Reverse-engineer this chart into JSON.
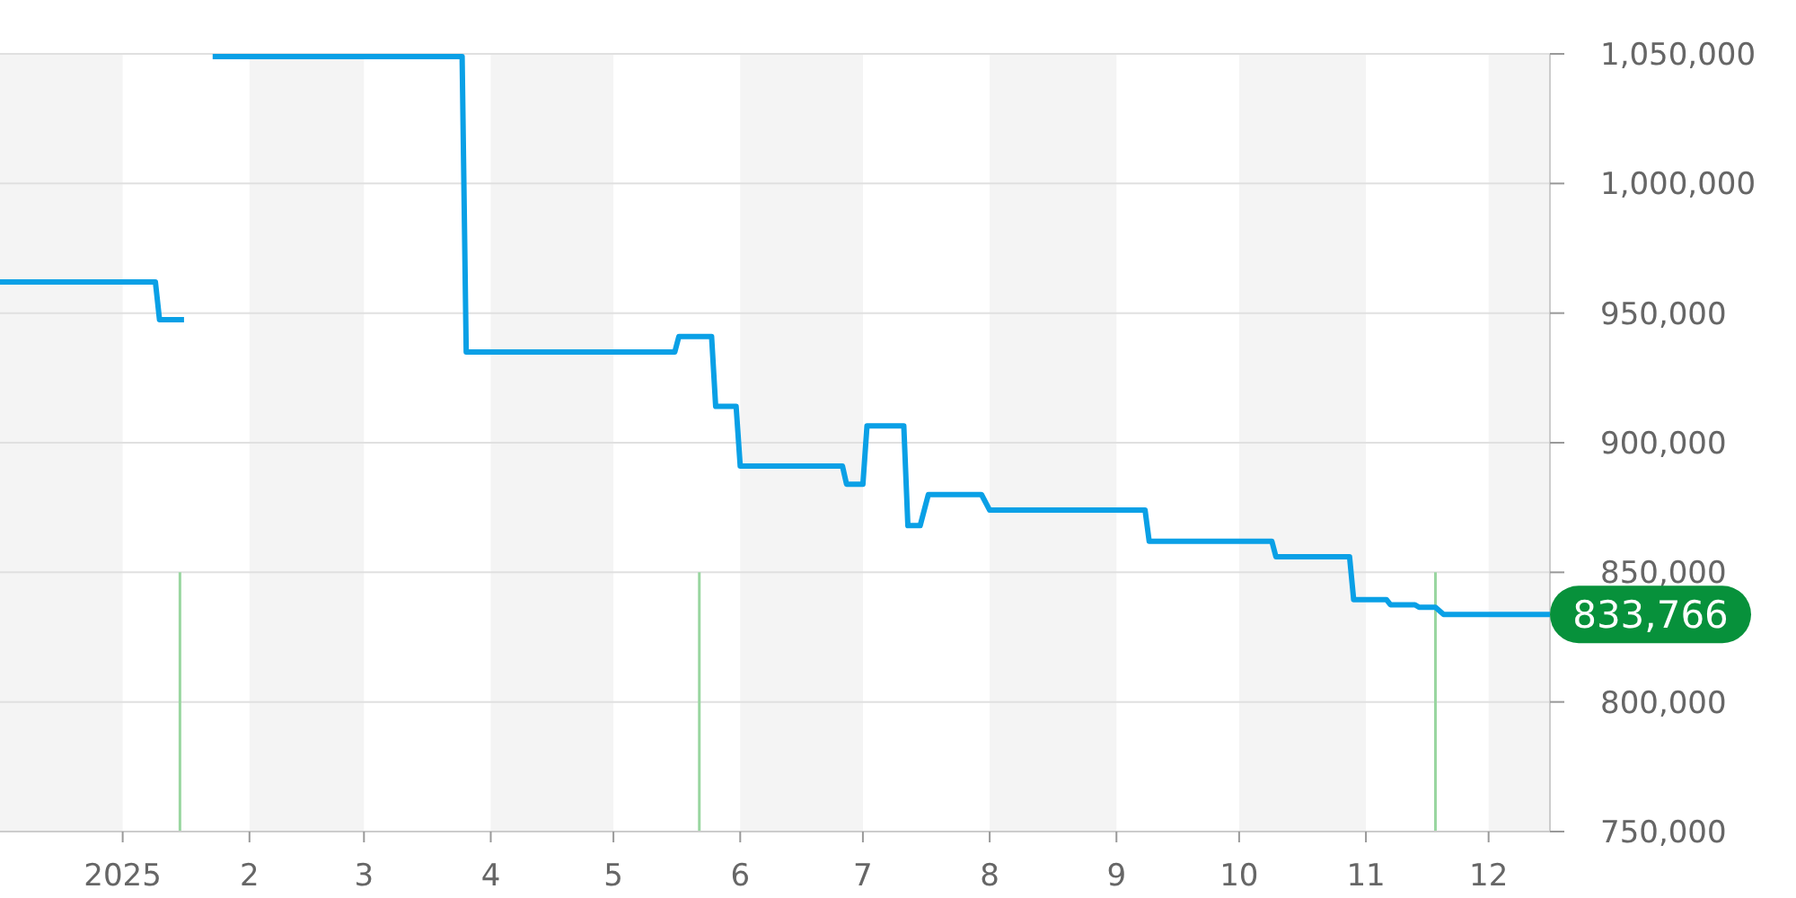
{
  "chart_data": {
    "type": "line",
    "x": [
      "2024-12-02",
      "2025-01-09",
      "2025-01-10",
      "2025-01-16",
      "2025-01-20",
      "2025-01-23",
      "2025-03-25",
      "2025-03-26",
      "2025-05-16",
      "2025-05-17",
      "2025-05-25",
      "2025-05-26",
      "2025-05-31",
      "2025-06-01",
      "2025-06-26",
      "2025-06-27",
      "2025-07-01",
      "2025-07-02",
      "2025-07-11",
      "2025-07-12",
      "2025-07-15",
      "2025-07-17",
      "2025-07-30",
      "2025-08-01",
      "2025-09-08",
      "2025-09-09",
      "2025-10-09",
      "2025-10-10",
      "2025-10-28",
      "2025-10-29",
      "2025-11-06",
      "2025-11-07",
      "2025-11-13",
      "2025-11-14",
      "2025-11-18",
      "2025-11-20",
      "2025-12-16"
    ],
    "series": [
      {
        "color": "#0aa0e6",
        "values": [
          962000,
          962000,
          947500,
          947500,
          null,
          1049000,
          1049000,
          935000,
          935000,
          941000,
          941000,
          914000,
          914000,
          891000,
          891000,
          884000,
          884000,
          906500,
          906500,
          868000,
          868000,
          880000,
          880000,
          874000,
          874000,
          862000,
          862000,
          856000,
          856000,
          839500,
          839500,
          837500,
          837500,
          836500,
          836500,
          833766,
          833766
        ]
      }
    ],
    "xlim": [
      "2024-12-02",
      "2025-12-16"
    ],
    "xticks": [
      {
        "value": "2025-01-01",
        "label": "2025"
      },
      {
        "value": "2025-02-01",
        "label": "2"
      },
      {
        "value": "2025-03-01",
        "label": "3"
      },
      {
        "value": "2025-04-01",
        "label": "4"
      },
      {
        "value": "2025-05-01",
        "label": "5"
      },
      {
        "value": "2025-06-01",
        "label": "6"
      },
      {
        "value": "2025-07-01",
        "label": "7"
      },
      {
        "value": "2025-08-01",
        "label": "8"
      },
      {
        "value": "2025-09-01",
        "label": "9"
      },
      {
        "value": "2025-10-01",
        "label": "10"
      },
      {
        "value": "2025-11-01",
        "label": "11"
      },
      {
        "value": "2025-12-01",
        "label": "12"
      }
    ],
    "ylim": [
      750000,
      1050000
    ],
    "yticks": [
      {
        "value": 750000,
        "label": "750,000"
      },
      {
        "value": 800000,
        "label": "800,000"
      },
      {
        "value": 850000,
        "label": "850,000"
      },
      {
        "value": 900000,
        "label": "900,000"
      },
      {
        "value": 950000,
        "label": "950,000"
      },
      {
        "value": 1000000,
        "label": "1,000,000"
      },
      {
        "value": 1050000,
        "label": "1,050,000"
      }
    ],
    "grid": "y",
    "marker": "none",
    "line_style": "solid",
    "bands": [
      {
        "axis": "x",
        "from": "2024-12-02",
        "to": "2025-01-01",
        "color": "#f4f4f4"
      },
      {
        "axis": "x",
        "from": "2025-02-01",
        "to": "2025-03-01",
        "color": "#f4f4f4"
      },
      {
        "axis": "x",
        "from": "2025-04-01",
        "to": "2025-05-01",
        "color": "#f4f4f4"
      },
      {
        "axis": "x",
        "from": "2025-06-01",
        "to": "2025-07-01",
        "color": "#f4f4f4"
      },
      {
        "axis": "x",
        "from": "2025-08-01",
        "to": "2025-09-01",
        "color": "#f4f4f4"
      },
      {
        "axis": "x",
        "from": "2025-10-01",
        "to": "2025-11-01",
        "color": "#f4f4f4"
      },
      {
        "axis": "x",
        "from": "2025-12-01",
        "to": "2025-12-16",
        "color": "#f4f4f4"
      }
    ],
    "ref_lines": [
      {
        "axis": "x",
        "value": "2025-01-15",
        "color": "#99d6a0"
      },
      {
        "axis": "x",
        "value": "2025-05-22",
        "color": "#99d6a0"
      },
      {
        "axis": "x",
        "value": "2025-11-18",
        "color": "#99d6a0"
      }
    ],
    "annotations": [
      {
        "text": "833,766",
        "x": "2025-12-16",
        "y": 833766
      }
    ]
  }
}
